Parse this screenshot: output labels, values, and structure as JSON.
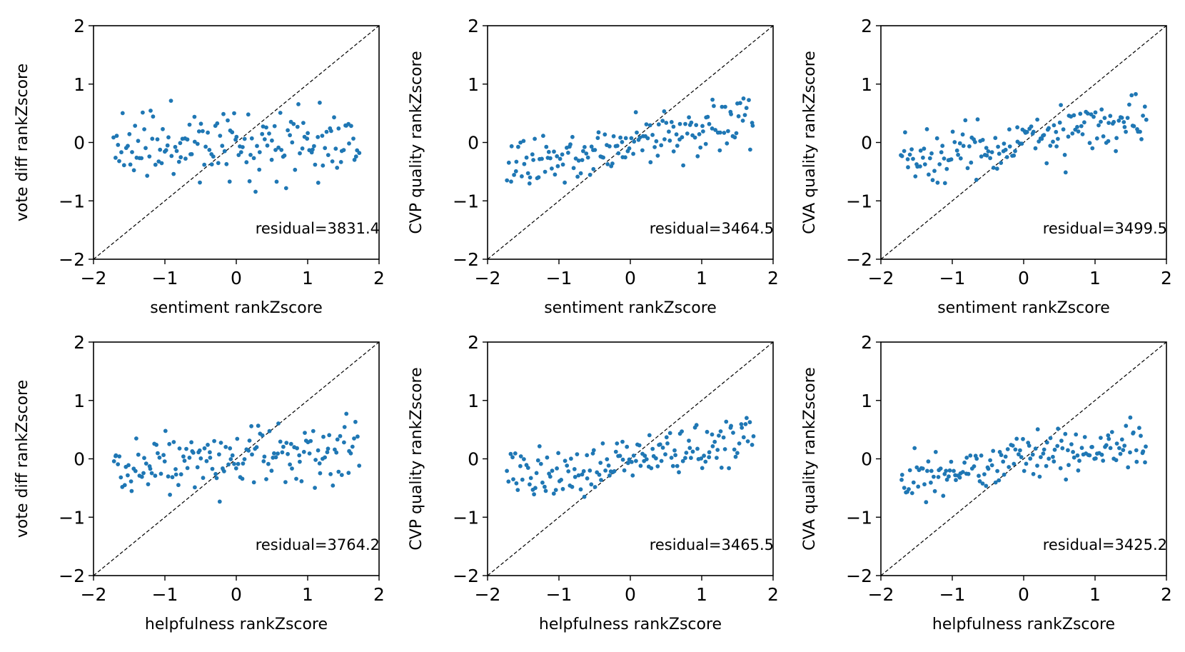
{
  "chart_data": [
    {
      "type": "scatter",
      "xlabel": "sentiment rankZscore",
      "ylabel": "vote diff rankZscore",
      "annotation": "residual=3831.4",
      "xlim": [
        -2,
        2
      ],
      "ylim": [
        -2,
        2
      ],
      "xticks": [
        -2,
        -1,
        0,
        1,
        2
      ],
      "yticks": [
        -2,
        -1,
        0,
        1,
        2
      ],
      "reference_line": "y = x",
      "point_color": "#1f77b4",
      "y_center": 0.0,
      "y_spread": 0.3,
      "y_slope": 0.03,
      "seed": 11
    },
    {
      "type": "scatter",
      "xlabel": "sentiment rankZscore",
      "ylabel": "CVP quality rankZscore",
      "annotation": "residual=3464.5",
      "xlim": [
        -2,
        2
      ],
      "ylim": [
        -2,
        2
      ],
      "xticks": [
        -2,
        -1,
        0,
        1,
        2
      ],
      "yticks": [
        -2,
        -1,
        0,
        1,
        2
      ],
      "reference_line": "y = x",
      "point_color": "#1f77b4",
      "y_center": 0.0,
      "y_spread": 0.22,
      "y_slope": 0.25,
      "seed": 23
    },
    {
      "type": "scatter",
      "xlabel": "sentiment rankZscore",
      "ylabel": "CVA quality rankZscore",
      "annotation": "residual=3499.5",
      "xlim": [
        -2,
        2
      ],
      "ylim": [
        -2,
        2
      ],
      "xticks": [
        -2,
        -1,
        0,
        1,
        2
      ],
      "yticks": [
        -2,
        -1,
        0,
        1,
        2
      ],
      "reference_line": "y = x",
      "point_color": "#1f77b4",
      "y_center": 0.0,
      "y_spread": 0.24,
      "y_slope": 0.2,
      "seed": 37
    },
    {
      "type": "scatter",
      "xlabel": "helpfulness rankZscore",
      "ylabel": "vote diff rankZscore",
      "annotation": "residual=3764.2",
      "xlim": [
        -2,
        2
      ],
      "ylim": [
        -2,
        2
      ],
      "xticks": [
        -2,
        -1,
        0,
        1,
        2
      ],
      "yticks": [
        -2,
        -1,
        0,
        1,
        2
      ],
      "reference_line": "y = x",
      "point_color": "#1f77b4",
      "y_center": 0.0,
      "y_spread": 0.26,
      "y_slope": 0.08,
      "seed": 41
    },
    {
      "type": "scatter",
      "xlabel": "helpfulness rankZscore",
      "ylabel": "CVP quality rankZscore",
      "annotation": "residual=3465.5",
      "xlim": [
        -2,
        2
      ],
      "ylim": [
        -2,
        2
      ],
      "xticks": [
        -2,
        -1,
        0,
        1,
        2
      ],
      "yticks": [
        -2,
        -1,
        0,
        1,
        2
      ],
      "reference_line": "y = x",
      "point_color": "#1f77b4",
      "y_center": 0.0,
      "y_spread": 0.2,
      "y_slope": 0.2,
      "seed": 53
    },
    {
      "type": "scatter",
      "xlabel": "helpfulness rankZscore",
      "ylabel": "CVA quality rankZscore",
      "annotation": "residual=3425.2",
      "xlim": [
        -2,
        2
      ],
      "ylim": [
        -2,
        2
      ],
      "xticks": [
        -2,
        -1,
        0,
        1,
        2
      ],
      "yticks": [
        -2,
        -1,
        0,
        1,
        2
      ],
      "reference_line": "y = x",
      "point_color": "#1f77b4",
      "y_center": 0.0,
      "y_spread": 0.2,
      "y_slope": 0.2,
      "seed": 67
    }
  ]
}
